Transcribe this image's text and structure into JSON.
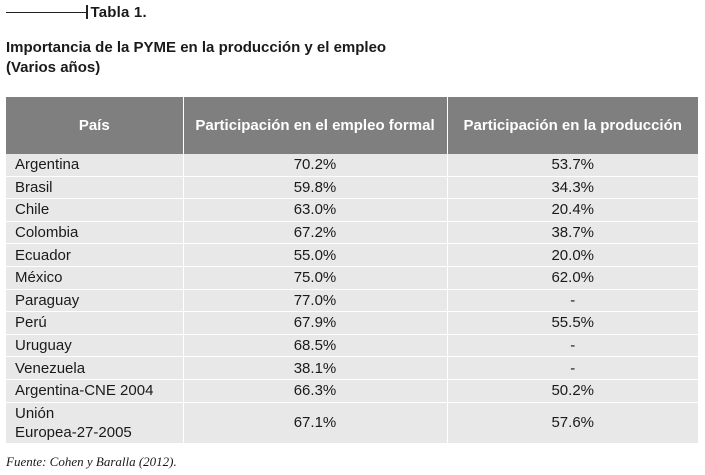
{
  "header": {
    "table_label": "Tabla 1."
  },
  "title": {
    "line1": "Importancia de la PYME en la producción y el empleo",
    "line2": "(Varios años)"
  },
  "table": {
    "columns": [
      "País",
      "Participación en el empleo formal",
      "Participación en la producción"
    ],
    "rows": [
      {
        "country": "Argentina",
        "employment": "70.2%",
        "production": "53.7%"
      },
      {
        "country": "Brasil",
        "employment": "59.8%",
        "production": "34.3%"
      },
      {
        "country": "Chile",
        "employment": "63.0%",
        "production": "20.4%"
      },
      {
        "country": "Colombia",
        "employment": "67.2%",
        "production": "38.7%"
      },
      {
        "country": "Ecuador",
        "employment": "55.0%",
        "production": "20.0%"
      },
      {
        "country": "México",
        "employment": "75.0%",
        "production": "62.0%"
      },
      {
        "country": "Paraguay",
        "employment": "77.0%",
        "production": "-"
      },
      {
        "country": "Perú",
        "employment": "67.9%",
        "production": "55.5%"
      },
      {
        "country": "Uruguay",
        "employment": "68.5%",
        "production": "-"
      },
      {
        "country": "Venezuela",
        "employment": "38.1%",
        "production": "-"
      },
      {
        "country": "Argentina-CNE 2004",
        "employment": "66.3%",
        "production": "50.2%"
      },
      {
        "country_line1": "Unión",
        "country_line2": "Europea-27-2005",
        "employment": "67.1%",
        "production": "57.6%"
      }
    ]
  },
  "source": {
    "text": "Fuente: Cohen y Baralla (2012)."
  },
  "colors": {
    "header_bg": "#7f7f7f",
    "row_bg": "#e8e8e8"
  }
}
